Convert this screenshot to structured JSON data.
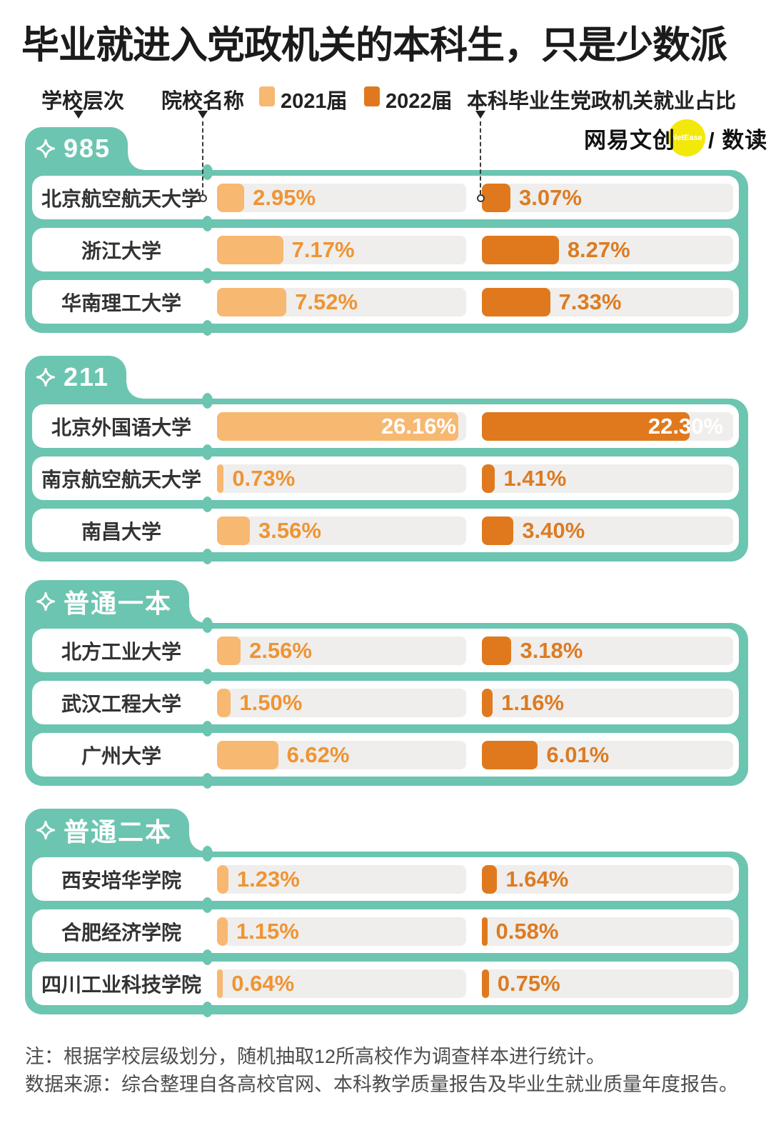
{
  "title": "毕业就进入党政机关的本科生，只是少数派",
  "legend": {
    "col_tier": "学校层次",
    "col_school": "院校名称",
    "series_2021": "2021届",
    "series_2022": "2022届",
    "col_metric": "本科毕业生党政机关就业占比"
  },
  "logo": {
    "brand": "网易文创",
    "badge": "NetEase",
    "tail": "/ 数读"
  },
  "colors": {
    "teal": "#6cc5b0",
    "bar_2021": "#f7b872",
    "bar_2022": "#e0791d",
    "value_text_2021": "#ef9434",
    "value_text_2022": "#dd7b22",
    "track": "#efeeec",
    "logo_yellow": "#f2e90a"
  },
  "chart_data": {
    "type": "bar",
    "orientation": "horizontal",
    "series": [
      "2021届",
      "2022届"
    ],
    "unit": "%",
    "xlim": [
      0,
      27
    ],
    "grid": false,
    "groups": [
      {
        "tier": "985",
        "rows": [
          {
            "school": "北京航空航天大学",
            "values": {
              "2021": 2.95,
              "2022": 3.07
            },
            "labels": {
              "2021": "2.95%",
              "2022": "3.07%"
            }
          },
          {
            "school": "浙江大学",
            "values": {
              "2021": 7.17,
              "2022": 8.27
            },
            "labels": {
              "2021": "7.17%",
              "2022": "8.27%"
            }
          },
          {
            "school": "华南理工大学",
            "values": {
              "2021": 7.52,
              "2022": 7.33
            },
            "labels": {
              "2021": "7.52%",
              "2022": "7.33%"
            }
          }
        ]
      },
      {
        "tier": "211",
        "rows": [
          {
            "school": "北京外国语大学",
            "values": {
              "2021": 26.16,
              "2022": 22.3
            },
            "labels": {
              "2021": "26.16%",
              "2022": "22.30%"
            }
          },
          {
            "school": "南京航空航天大学",
            "values": {
              "2021": 0.73,
              "2022": 1.41
            },
            "labels": {
              "2021": "0.73%",
              "2022": "1.41%"
            }
          },
          {
            "school": "南昌大学",
            "values": {
              "2021": 3.56,
              "2022": 3.4
            },
            "labels": {
              "2021": "3.56%",
              "2022": "3.40%"
            }
          }
        ]
      },
      {
        "tier": "普通一本",
        "rows": [
          {
            "school": "北方工业大学",
            "values": {
              "2021": 2.56,
              "2022": 3.18
            },
            "labels": {
              "2021": "2.56%",
              "2022": "3.18%"
            }
          },
          {
            "school": "武汉工程大学",
            "values": {
              "2021": 1.5,
              "2022": 1.16
            },
            "labels": {
              "2021": "1.50%",
              "2022": "1.16%"
            }
          },
          {
            "school": "广州大学",
            "values": {
              "2021": 6.62,
              "2022": 6.01
            },
            "labels": {
              "2021": "6.62%",
              "2022": "6.01%"
            }
          }
        ]
      },
      {
        "tier": "普通二本",
        "rows": [
          {
            "school": "西安培华学院",
            "values": {
              "2021": 1.23,
              "2022": 1.64
            },
            "labels": {
              "2021": "1.23%",
              "2022": "1.64%"
            }
          },
          {
            "school": "合肥经济学院",
            "values": {
              "2021": 1.15,
              "2022": 0.58
            },
            "labels": {
              "2021": "1.15%",
              "2022": "0.58%"
            }
          },
          {
            "school": "四川工业科技学院",
            "values": {
              "2021": 0.64,
              "2022": 0.75
            },
            "labels": {
              "2021": "0.64%",
              "2022": "0.75%"
            }
          }
        ]
      }
    ]
  },
  "footer": {
    "note1": "注：根据学校层级划分，随机抽取12所高校作为调查样本进行统计。",
    "note2": "数据来源：综合整理自各高校官网、本科教学质量报告及毕业生就业质量年度报告。"
  }
}
